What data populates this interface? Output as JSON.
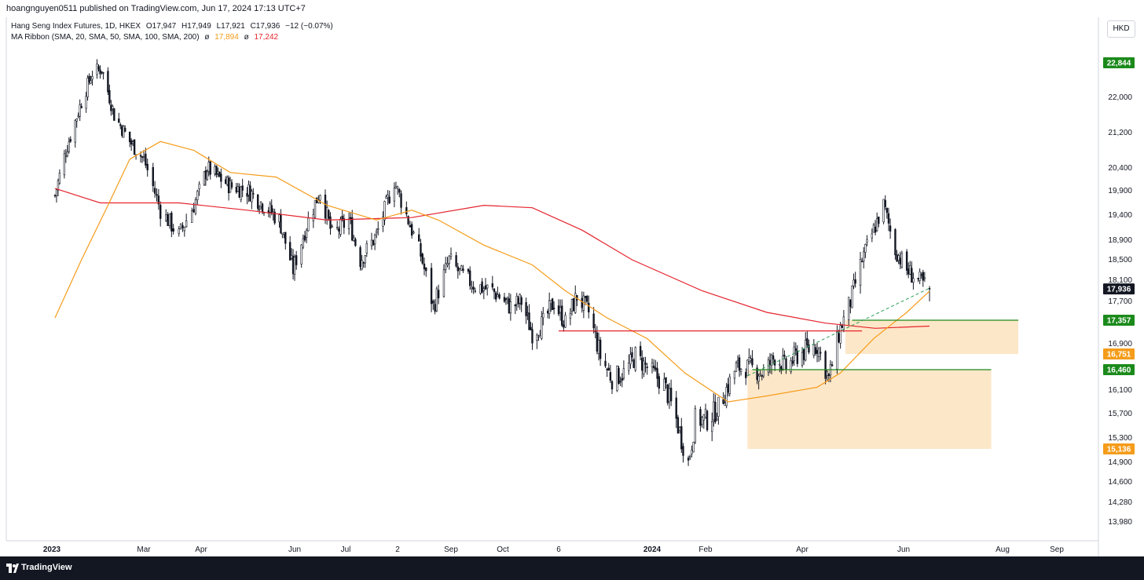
{
  "header": {
    "published": "hoangnguyen0511 published on TradingView.com, Jun 17, 2024 17:13 UTC+7",
    "symbol_line": [
      "Hang Seng Index Futures, 1D, HKEX",
      "O17,947",
      "H17,949",
      "L17,921",
      "C17,936",
      "−12 (−0.07%)"
    ],
    "ma_prefix": "MA Ribbon (SMA, 20, SMA, 50, SMA, 100, SMA, 200)",
    "ma_symbol": "ø",
    "ma_value_orange": "17,894",
    "ma_value_red": "17,242"
  },
  "currency": "HKD",
  "footer": {
    "brand": "TradingView"
  },
  "colors": {
    "orange": "#f59c1a",
    "red": "#e5232d",
    "green": "#1b8a1b",
    "zone": "#fde7c9",
    "price_tag": "#131722"
  },
  "chart_data": {
    "type": "candlestick",
    "y_ticks": [
      "22,000",
      "21,200",
      "20,400",
      "19,900",
      "19,400",
      "18,900",
      "18,500",
      "18,100",
      "17,700",
      "16,900",
      "16,100",
      "15,700",
      "15,300",
      "14,900",
      "14,600",
      "14,280",
      "13,980"
    ],
    "x_ticks": [
      "2023",
      "Mar",
      "Apr",
      "Jun",
      "Jul",
      "2",
      "Sep",
      "Oct",
      "6",
      "2024",
      "Feb",
      "Apr",
      "Jun",
      "Aug",
      "Sep"
    ],
    "bold_x_ticks": [
      "2023",
      "2024"
    ],
    "price_tags": [
      {
        "label": "22,844",
        "color": "#1b8a1b"
      },
      {
        "label": "17,936",
        "color": "#131722"
      },
      {
        "label": "17,357",
        "color": "#1b8a1b"
      },
      {
        "label": "16,751",
        "color": "#f59c1a"
      },
      {
        "label": "16,460",
        "color": "#1b8a1b"
      },
      {
        "label": "15,136",
        "color": "#f59c1a"
      }
    ],
    "close_path": [
      [
        "2023-01-03",
        19800
      ],
      [
        "2023-01-10",
        20800
      ],
      [
        "2023-01-20",
        21900
      ],
      [
        "2023-01-27",
        22600
      ],
      [
        "2023-02-02",
        22700
      ],
      [
        "2023-02-10",
        21600
      ],
      [
        "2023-02-20",
        21000
      ],
      [
        "2023-03-01",
        20600
      ],
      [
        "2023-03-10",
        19500
      ],
      [
        "2023-03-20",
        19000
      ],
      [
        "2023-03-28",
        19600
      ],
      [
        "2023-04-05",
        20400
      ],
      [
        "2023-04-12",
        20200
      ],
      [
        "2023-04-20",
        20000
      ],
      [
        "2023-05-02",
        19900
      ],
      [
        "2023-05-12",
        19600
      ],
      [
        "2023-05-22",
        19300
      ],
      [
        "2023-05-31",
        18300
      ],
      [
        "2023-06-08",
        19200
      ],
      [
        "2023-06-16",
        19900
      ],
      [
        "2023-06-23",
        19000
      ],
      [
        "2023-07-03",
        19300
      ],
      [
        "2023-07-10",
        18500
      ],
      [
        "2023-07-20",
        19000
      ],
      [
        "2023-07-31",
        20100
      ],
      [
        "2023-08-08",
        19300
      ],
      [
        "2023-08-15",
        18600
      ],
      [
        "2023-08-22",
        17600
      ],
      [
        "2023-08-31",
        18500
      ],
      [
        "2023-09-07",
        18200
      ],
      [
        "2023-09-15",
        18000
      ],
      [
        "2023-09-25",
        17900
      ],
      [
        "2023-10-06",
        17600
      ],
      [
        "2023-10-13",
        17700
      ],
      [
        "2023-10-20",
        17100
      ],
      [
        "2023-10-27",
        17300
      ],
      [
        "2023-11-03",
        17700
      ],
      [
        "2023-11-10",
        17300
      ],
      [
        "2023-11-17",
        17800
      ],
      [
        "2023-11-24",
        17500
      ],
      [
        "2023-12-01",
        16700
      ],
      [
        "2023-12-08",
        16300
      ],
      [
        "2023-12-15",
        16400
      ],
      [
        "2023-12-22",
        16700
      ],
      [
        "2023-12-29",
        16500
      ],
      [
        "2024-01-08",
        16200
      ],
      [
        "2024-01-15",
        15600
      ],
      [
        "2024-01-22",
        14900
      ],
      [
        "2024-01-26",
        15600
      ],
      [
        "2024-02-02",
        15600
      ],
      [
        "2024-02-09",
        15800
      ],
      [
        "2024-02-20",
        16500
      ],
      [
        "2024-02-29",
        16500
      ],
      [
        "2024-03-08",
        16400
      ],
      [
        "2024-03-15",
        16700
      ],
      [
        "2024-03-22",
        16500
      ],
      [
        "2024-03-28",
        16700
      ],
      [
        "2024-04-10",
        16900
      ],
      [
        "2024-04-17",
        16300
      ],
      [
        "2024-04-24",
        17200
      ],
      [
        "2024-04-30",
        17700
      ],
      [
        "2024-05-07",
        18500
      ],
      [
        "2024-05-14",
        19100
      ],
      [
        "2024-05-20",
        19600
      ],
      [
        "2024-05-27",
        18700
      ],
      [
        "2024-06-03",
        18300
      ],
      [
        "2024-06-10",
        18100
      ],
      [
        "2024-06-17",
        17936
      ]
    ],
    "sma_orange_path": [
      [
        "2023-01-03",
        17400
      ],
      [
        "2023-01-20",
        18500
      ],
      [
        "2023-02-06",
        19600
      ],
      [
        "2023-02-20",
        20600
      ],
      [
        "2023-03-10",
        21000
      ],
      [
        "2023-03-28",
        20800
      ],
      [
        "2023-04-20",
        20300
      ],
      [
        "2023-05-20",
        20200
      ],
      [
        "2023-06-20",
        19600
      ],
      [
        "2023-07-20",
        19300
      ],
      [
        "2023-08-10",
        19500
      ],
      [
        "2023-08-25",
        19300
      ],
      [
        "2023-09-20",
        18800
      ],
      [
        "2023-10-20",
        18400
      ],
      [
        "2023-11-10",
        17900
      ],
      [
        "2023-12-05",
        17400
      ],
      [
        "2023-12-29",
        17000
      ],
      [
        "2024-01-20",
        16400
      ],
      [
        "2024-02-15",
        15900
      ],
      [
        "2024-03-10",
        16000
      ],
      [
        "2024-04-10",
        16150
      ],
      [
        "2024-04-24",
        16400
      ],
      [
        "2024-05-14",
        17000
      ],
      [
        "2024-06-03",
        17500
      ],
      [
        "2024-06-17",
        17894
      ]
    ],
    "sma_red_path": [
      [
        "2023-01-03",
        19950
      ],
      [
        "2023-02-01",
        19650
      ],
      [
        "2023-03-20",
        19650
      ],
      [
        "2023-05-01",
        19500
      ],
      [
        "2023-06-20",
        19300
      ],
      [
        "2023-08-10",
        19350
      ],
      [
        "2023-09-20",
        19600
      ],
      [
        "2023-10-20",
        19550
      ],
      [
        "2023-11-20",
        19100
      ],
      [
        "2023-12-20",
        18500
      ],
      [
        "2024-01-30",
        17900
      ],
      [
        "2024-03-10",
        17500
      ],
      [
        "2024-04-15",
        17300
      ],
      [
        "2024-05-15",
        17200
      ],
      [
        "2024-06-17",
        17242
      ]
    ],
    "horizontal_lines": [
      {
        "color": "#e5232d",
        "price": 17150,
        "from": "2023-11-06",
        "to": "2024-05-07"
      },
      {
        "color": "#1b8a1b",
        "price": 17357,
        "from": "2024-05-01",
        "to": "2024-08-10"
      },
      {
        "color": "#1b8a1b",
        "price": 16460,
        "from": "2024-03-01",
        "to": "2024-07-25"
      }
    ],
    "zones": [
      {
        "color": "#fde7c9",
        "top": 17357,
        "bottom": 16751,
        "from": "2024-04-27",
        "to": "2024-08-10"
      },
      {
        "color": "#fde7c9",
        "top": 16460,
        "bottom": 15136,
        "from": "2024-02-27",
        "to": "2024-07-25"
      }
    ],
    "trendline": {
      "color": "#2e9e57",
      "from": [
        "2024-02-27",
        16350
      ],
      "to": [
        "2024-06-17",
        17950
      ]
    }
  }
}
